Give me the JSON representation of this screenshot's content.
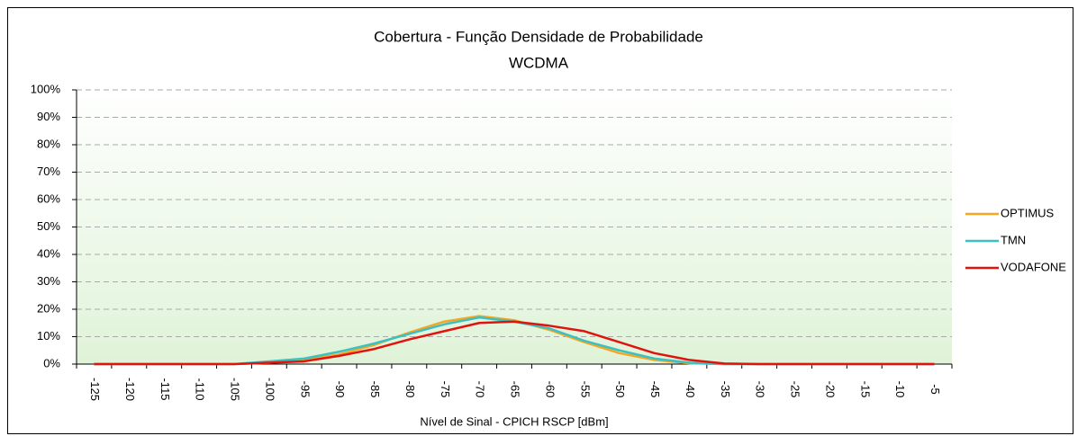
{
  "chart_data": {
    "type": "line",
    "title": "Cobertura - Função Densidade de Probabilidade",
    "subtitle": "WCDMA",
    "x_label": "Nível de Sinal - CPICH RSCP [dBm]",
    "categories": [
      "-125",
      "-120",
      "-115",
      "-110",
      "-105",
      "-100",
      "-95",
      "-90",
      "-85",
      "-80",
      "-75",
      "-70",
      "-65",
      "-60",
      "-55",
      "-50",
      "-45",
      "-40",
      "-35",
      "-30",
      "-25",
      "-20",
      "-15",
      "-10",
      "-5"
    ],
    "series": [
      {
        "name": "OPTIMUS",
        "color": "#f5a623",
        "values": [
          0,
          0,
          0,
          0,
          0,
          0.5,
          1.5,
          3.5,
          7,
          11.5,
          15.5,
          17.5,
          16,
          12.5,
          8,
          4,
          1.5,
          0.3,
          0,
          0,
          0,
          0,
          0,
          0,
          0
        ]
      },
      {
        "name": "TMN",
        "color": "#3cc0c0",
        "values": [
          0,
          0,
          0,
          0,
          0,
          1,
          2,
          4.5,
          7.5,
          11,
          14.5,
          17,
          15.5,
          13,
          8.5,
          5,
          2,
          0.5,
          0,
          0,
          0,
          0,
          0,
          0,
          0
        ]
      },
      {
        "name": "VODAFONE",
        "color": "#e0140f",
        "values": [
          0,
          0,
          0,
          0,
          0,
          0.5,
          1,
          3,
          5.5,
          9,
          12,
          15,
          15.5,
          14,
          12,
          8,
          4,
          1.5,
          0.2,
          0,
          0,
          0,
          0,
          0,
          0
        ]
      }
    ],
    "ylim": [
      0,
      100
    ],
    "yticks": [
      {
        "value": 0,
        "label": "0%"
      },
      {
        "value": 10,
        "label": "10%"
      },
      {
        "value": 20,
        "label": "20%"
      },
      {
        "value": 30,
        "label": "30%"
      },
      {
        "value": 40,
        "label": "40%"
      },
      {
        "value": 50,
        "label": "50%"
      },
      {
        "value": 60,
        "label": "60%"
      },
      {
        "value": 70,
        "label": "70%"
      },
      {
        "value": 80,
        "label": "80%"
      },
      {
        "value": 90,
        "label": "90%"
      },
      {
        "value": 100,
        "label": "100%"
      }
    ],
    "grid": true,
    "legend": "right"
  }
}
